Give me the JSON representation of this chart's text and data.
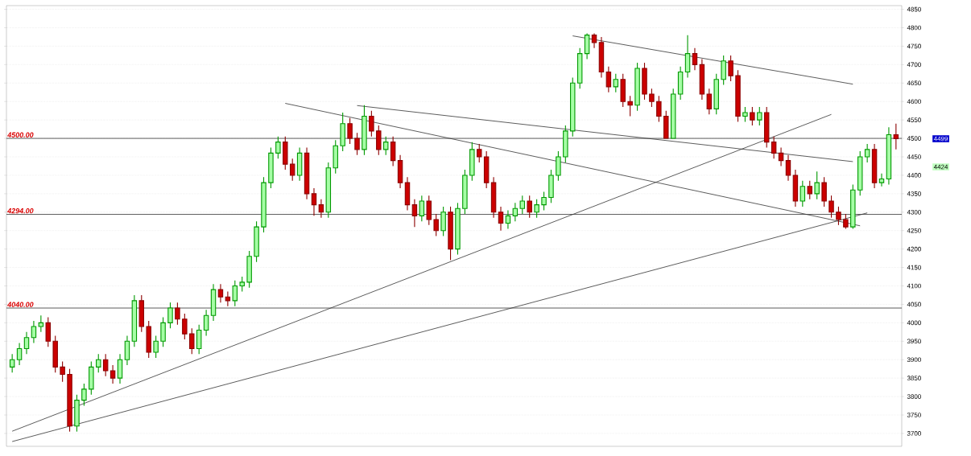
{
  "chart_data": {
    "type": "candlestick",
    "categories": [
      null,
      null,
      null,
      null,
      null,
      null,
      null,
      null,
      null,
      null,
      null,
      null,
      null,
      null,
      null,
      null,
      null,
      null,
      null,
      null,
      null,
      null,
      null,
      null,
      null,
      null,
      null,
      null,
      null,
      null,
      null,
      null,
      null,
      null,
      null,
      null,
      null,
      null,
      null,
      null,
      null,
      null,
      null,
      null,
      null,
      null,
      null,
      null,
      null,
      null,
      null,
      null,
      null,
      null,
      null,
      null,
      null,
      null,
      null,
      null,
      null,
      null,
      null,
      null,
      null,
      null,
      null,
      null,
      null,
      null,
      null,
      null,
      null,
      null,
      null,
      null,
      null,
      null,
      null,
      null,
      null,
      null,
      null,
      null,
      null,
      null,
      null,
      null,
      null,
      null,
      null,
      null,
      null,
      null,
      null,
      null,
      null,
      null,
      null,
      null,
      null,
      null,
      null,
      null,
      null,
      null,
      null,
      null,
      null,
      null,
      null,
      null,
      null,
      null,
      null,
      null,
      null,
      null,
      null,
      null,
      null,
      null,
      null,
      null
    ],
    "ohlc": [
      [
        3880,
        3915,
        3865,
        3900
      ],
      [
        3900,
        3945,
        3885,
        3930
      ],
      [
        3930,
        3975,
        3915,
        3960
      ],
      [
        3960,
        4005,
        3945,
        3990
      ],
      [
        3990,
        4020,
        3975,
        4000
      ],
      [
        4000,
        4015,
        3935,
        3950
      ],
      [
        3950,
        3965,
        3865,
        3880
      ],
      [
        3880,
        3895,
        3840,
        3860
      ],
      [
        3860,
        3875,
        3705,
        3720
      ],
      [
        3720,
        3805,
        3705,
        3790
      ],
      [
        3790,
        3835,
        3775,
        3820
      ],
      [
        3820,
        3895,
        3805,
        3880
      ],
      [
        3880,
        3915,
        3865,
        3900
      ],
      [
        3900,
        3915,
        3855,
        3870
      ],
      [
        3870,
        3885,
        3835,
        3850
      ],
      [
        3850,
        3915,
        3835,
        3900
      ],
      [
        3900,
        3965,
        3885,
        3950
      ],
      [
        3950,
        4075,
        3935,
        4060
      ],
      [
        4060,
        4075,
        3975,
        3990
      ],
      [
        3990,
        4005,
        3905,
        3920
      ],
      [
        3920,
        3965,
        3905,
        3950
      ],
      [
        3950,
        4015,
        3935,
        4000
      ],
      [
        4000,
        4055,
        3985,
        4040
      ],
      [
        4040,
        4055,
        3995,
        4010
      ],
      [
        4010,
        4025,
        3955,
        3970
      ],
      [
        3970,
        3985,
        3915,
        3930
      ],
      [
        3930,
        3995,
        3915,
        3980
      ],
      [
        3980,
        4035,
        3965,
        4020
      ],
      [
        4020,
        4105,
        4005,
        4090
      ],
      [
        4090,
        4105,
        4055,
        4070
      ],
      [
        4070,
        4085,
        4045,
        4060
      ],
      [
        4060,
        4115,
        4045,
        4100
      ],
      [
        4100,
        4125,
        4085,
        4110
      ],
      [
        4110,
        4195,
        4095,
        4180
      ],
      [
        4180,
        4275,
        4165,
        4260
      ],
      [
        4260,
        4395,
        4245,
        4380
      ],
      [
        4380,
        4475,
        4365,
        4460
      ],
      [
        4460,
        4505,
        4445,
        4490
      ],
      [
        4490,
        4505,
        4415,
        4430
      ],
      [
        4430,
        4445,
        4385,
        4400
      ],
      [
        4400,
        4475,
        4385,
        4460
      ],
      [
        4460,
        4475,
        4335,
        4350
      ],
      [
        4350,
        4365,
        4290,
        4320
      ],
      [
        4320,
        4335,
        4285,
        4300
      ],
      [
        4300,
        4435,
        4285,
        4420
      ],
      [
        4420,
        4495,
        4405,
        4480
      ],
      [
        4480,
        4570,
        4465,
        4540
      ],
      [
        4540,
        4555,
        4485,
        4500
      ],
      [
        4500,
        4515,
        4455,
        4470
      ],
      [
        4470,
        4590,
        4455,
        4560
      ],
      [
        4560,
        4575,
        4505,
        4520
      ],
      [
        4520,
        4535,
        4455,
        4470
      ],
      [
        4470,
        4505,
        4455,
        4490
      ],
      [
        4490,
        4505,
        4425,
        4440
      ],
      [
        4440,
        4455,
        4365,
        4380
      ],
      [
        4380,
        4395,
        4305,
        4320
      ],
      [
        4320,
        4335,
        4260,
        4290
      ],
      [
        4290,
        4345,
        4275,
        4330
      ],
      [
        4330,
        4345,
        4265,
        4280
      ],
      [
        4280,
        4295,
        4235,
        4250
      ],
      [
        4250,
        4315,
        4235,
        4300
      ],
      [
        4300,
        4315,
        4170,
        4200
      ],
      [
        4200,
        4325,
        4185,
        4310
      ],
      [
        4310,
        4415,
        4295,
        4400
      ],
      [
        4400,
        4490,
        4385,
        4470
      ],
      [
        4470,
        4485,
        4435,
        4450
      ],
      [
        4450,
        4465,
        4365,
        4380
      ],
      [
        4380,
        4395,
        4285,
        4300
      ],
      [
        4300,
        4315,
        4250,
        4270
      ],
      [
        4270,
        4305,
        4255,
        4290
      ],
      [
        4290,
        4325,
        4275,
        4310
      ],
      [
        4310,
        4345,
        4295,
        4330
      ],
      [
        4330,
        4345,
        4285,
        4300
      ],
      [
        4300,
        4335,
        4285,
        4320
      ],
      [
        4320,
        4355,
        4305,
        4340
      ],
      [
        4340,
        4415,
        4325,
        4400
      ],
      [
        4400,
        4465,
        4385,
        4450
      ],
      [
        4450,
        4535,
        4435,
        4520
      ],
      [
        4520,
        4665,
        4505,
        4650
      ],
      [
        4650,
        4745,
        4635,
        4730
      ],
      [
        4730,
        4785,
        4715,
        4780
      ],
      [
        4780,
        4785,
        4745,
        4760
      ],
      [
        4760,
        4775,
        4665,
        4680
      ],
      [
        4680,
        4695,
        4625,
        4640
      ],
      [
        4640,
        4675,
        4625,
        4660
      ],
      [
        4660,
        4675,
        4585,
        4600
      ],
      [
        4600,
        4615,
        4560,
        4590
      ],
      [
        4590,
        4705,
        4575,
        4690
      ],
      [
        4690,
        4705,
        4605,
        4620
      ],
      [
        4620,
        4635,
        4585,
        4600
      ],
      [
        4600,
        4615,
        4545,
        4560
      ],
      [
        4560,
        4575,
        4500,
        4500
      ],
      [
        4500,
        4635,
        4500,
        4620
      ],
      [
        4620,
        4695,
        4605,
        4680
      ],
      [
        4680,
        4780,
        4665,
        4730
      ],
      [
        4730,
        4745,
        4685,
        4700
      ],
      [
        4700,
        4715,
        4605,
        4620
      ],
      [
        4620,
        4635,
        4565,
        4580
      ],
      [
        4580,
        4675,
        4565,
        4660
      ],
      [
        4660,
        4725,
        4645,
        4710
      ],
      [
        4710,
        4725,
        4655,
        4670
      ],
      [
        4670,
        4685,
        4545,
        4560
      ],
      [
        4560,
        4585,
        4545,
        4570
      ],
      [
        4570,
        4585,
        4535,
        4550
      ],
      [
        4550,
        4585,
        4535,
        4570
      ],
      [
        4570,
        4585,
        4475,
        4490
      ],
      [
        4490,
        4505,
        4445,
        4460
      ],
      [
        4460,
        4475,
        4425,
        4440
      ],
      [
        4440,
        4455,
        4385,
        4400
      ],
      [
        4400,
        4415,
        4315,
        4330
      ],
      [
        4330,
        4385,
        4315,
        4370
      ],
      [
        4370,
        4385,
        4335,
        4350
      ],
      [
        4350,
        4410,
        4335,
        4380
      ],
      [
        4380,
        4395,
        4315,
        4330
      ],
      [
        4330,
        4345,
        4285,
        4300
      ],
      [
        4300,
        4315,
        4265,
        4280
      ],
      [
        4280,
        4295,
        4255,
        4260
      ],
      [
        4260,
        4375,
        4255,
        4360
      ],
      [
        4360,
        4465,
        4345,
        4450
      ],
      [
        4450,
        4485,
        4435,
        4470
      ],
      [
        4470,
        4485,
        4365,
        4380
      ],
      [
        4380,
        4405,
        4370,
        4390
      ],
      [
        4390,
        4530,
        4375,
        4510
      ],
      [
        4510,
        4540,
        4470,
        4499
      ]
    ],
    "series": [
      {
        "type": "line",
        "color": "#333333",
        "values": [
          3706,
          null,
          null,
          null,
          null,
          null,
          null,
          null,
          null,
          null,
          null,
          null,
          null,
          null,
          null,
          null,
          null,
          null,
          null,
          null,
          null,
          null,
          null,
          null,
          null,
          null,
          null,
          null,
          null,
          null,
          null,
          null,
          null,
          null,
          null,
          null,
          null,
          null,
          null,
          null,
          null,
          null,
          null,
          null,
          null,
          null,
          null,
          null,
          null,
          null,
          null,
          null,
          null,
          null,
          null,
          null,
          null,
          null,
          null,
          null,
          null,
          null,
          null,
          null,
          null,
          null,
          null,
          null,
          null,
          null,
          null,
          null,
          null,
          null,
          null,
          null,
          null,
          null,
          null,
          null,
          null,
          null,
          null,
          null,
          null,
          null,
          null,
          null,
          null,
          null,
          null,
          null,
          null,
          null,
          null,
          null,
          null,
          null,
          null,
          null,
          null,
          null,
          null,
          null,
          null,
          null,
          null,
          null,
          null,
          null,
          null,
          null,
          null,
          null,
          4565,
          null,
          null,
          null,
          null,
          null,
          null,
          null,
          null,
          null
        ]
      },
      {
        "type": "line",
        "color": "#333333",
        "values": [
          3678,
          null,
          null,
          null,
          null,
          null,
          null,
          null,
          null,
          null,
          null,
          null,
          null,
          null,
          null,
          null,
          null,
          null,
          null,
          null,
          null,
          null,
          null,
          null,
          null,
          null,
          null,
          null,
          null,
          null,
          null,
          null,
          null,
          null,
          null,
          null,
          null,
          null,
          null,
          null,
          null,
          null,
          null,
          null,
          null,
          null,
          null,
          null,
          null,
          null,
          null,
          null,
          null,
          null,
          null,
          null,
          null,
          null,
          null,
          null,
          null,
          null,
          null,
          null,
          null,
          null,
          null,
          null,
          null,
          null,
          null,
          null,
          null,
          null,
          null,
          null,
          null,
          null,
          null,
          null,
          null,
          null,
          null,
          null,
          null,
          null,
          null,
          null,
          null,
          null,
          null,
          null,
          null,
          null,
          null,
          null,
          null,
          null,
          null,
          null,
          null,
          null,
          null,
          null,
          null,
          null,
          null,
          null,
          null,
          null,
          null,
          null,
          null,
          null,
          null,
          null,
          null,
          null,
          null,
          4298,
          null,
          null,
          null,
          null
        ]
      },
      {
        "type": "line",
        "color": "#333333",
        "values": [
          null,
          null,
          null,
          null,
          null,
          null,
          null,
          null,
          null,
          null,
          null,
          null,
          null,
          null,
          null,
          null,
          null,
          null,
          null,
          null,
          null,
          null,
          null,
          null,
          null,
          null,
          null,
          null,
          null,
          null,
          null,
          null,
          null,
          null,
          null,
          null,
          null,
          null,
          4595,
          null,
          null,
          null,
          null,
          null,
          null,
          null,
          null,
          null,
          null,
          null,
          null,
          null,
          null,
          null,
          null,
          null,
          null,
          null,
          null,
          null,
          null,
          null,
          null,
          null,
          null,
          null,
          null,
          null,
          null,
          null,
          null,
          null,
          null,
          null,
          null,
          null,
          null,
          null,
          null,
          null,
          null,
          null,
          null,
          null,
          null,
          null,
          null,
          null,
          null,
          null,
          null,
          null,
          null,
          null,
          null,
          null,
          null,
          null,
          null,
          null,
          null,
          null,
          null,
          null,
          null,
          null,
          null,
          null,
          null,
          null,
          null,
          null,
          null,
          null,
          null,
          null,
          null,
          null,
          4263,
          null,
          null,
          null,
          null,
          null
        ]
      },
      {
        "type": "line",
        "color": "#333333",
        "values": [
          null,
          null,
          null,
          null,
          null,
          null,
          null,
          null,
          null,
          null,
          null,
          null,
          null,
          null,
          null,
          null,
          null,
          null,
          null,
          null,
          null,
          null,
          null,
          null,
          null,
          null,
          null,
          null,
          null,
          null,
          null,
          null,
          null,
          null,
          null,
          null,
          null,
          null,
          null,
          null,
          null,
          null,
          null,
          null,
          null,
          null,
          null,
          null,
          4589,
          null,
          null,
          null,
          null,
          null,
          null,
          null,
          null,
          null,
          null,
          null,
          null,
          null,
          null,
          null,
          null,
          null,
          null,
          null,
          null,
          null,
          null,
          null,
          null,
          null,
          null,
          null,
          null,
          null,
          null,
          null,
          null,
          null,
          null,
          null,
          null,
          null,
          null,
          null,
          null,
          null,
          null,
          null,
          null,
          null,
          null,
          null,
          null,
          null,
          null,
          null,
          null,
          null,
          null,
          null,
          null,
          null,
          null,
          null,
          null,
          null,
          null,
          null,
          null,
          null,
          null,
          null,
          null,
          4437,
          null,
          null,
          null,
          null,
          null,
          null
        ]
      },
      {
        "type": "line",
        "color": "#333333",
        "values": [
          null,
          null,
          null,
          null,
          null,
          null,
          null,
          null,
          null,
          null,
          null,
          null,
          null,
          null,
          null,
          null,
          null,
          null,
          null,
          null,
          null,
          null,
          null,
          null,
          null,
          null,
          null,
          null,
          null,
          null,
          null,
          null,
          null,
          null,
          null,
          null,
          null,
          null,
          null,
          null,
          null,
          null,
          null,
          null,
          null,
          null,
          null,
          null,
          null,
          null,
          null,
          null,
          null,
          null,
          null,
          null,
          null,
          null,
          null,
          null,
          null,
          null,
          null,
          null,
          null,
          null,
          null,
          null,
          null,
          null,
          null,
          null,
          null,
          null,
          null,
          null,
          null,
          null,
          4778,
          null,
          null,
          null,
          null,
          null,
          null,
          null,
          null,
          null,
          null,
          null,
          null,
          null,
          null,
          null,
          null,
          null,
          null,
          null,
          null,
          null,
          null,
          null,
          null,
          null,
          null,
          null,
          null,
          null,
          null,
          null,
          null,
          null,
          null,
          null,
          null,
          null,
          null,
          4647,
          null,
          null,
          null,
          null,
          null,
          null
        ]
      }
    ],
    "ref_lines": [
      {
        "axis": "y",
        "value": 4500,
        "label": "4500.00",
        "color": "#333333"
      },
      {
        "axis": "y",
        "value": 4294,
        "label": "4294.00",
        "color": "#333333"
      },
      {
        "axis": "y",
        "value": 4040,
        "label": "4040.00",
        "color": "#333333"
      }
    ],
    "annotations": [
      "4499",
      "4424"
    ],
    "ylim": [
      3665,
      4860
    ],
    "yticks": [
      3700,
      3750,
      3800,
      3850,
      3900,
      3950,
      4000,
      4050,
      4100,
      4150,
      4200,
      4250,
      4300,
      4350,
      4400,
      4450,
      4500,
      4550,
      4600,
      4650,
      4700,
      4750,
      4800,
      4850
    ],
    "grid": "y"
  }
}
